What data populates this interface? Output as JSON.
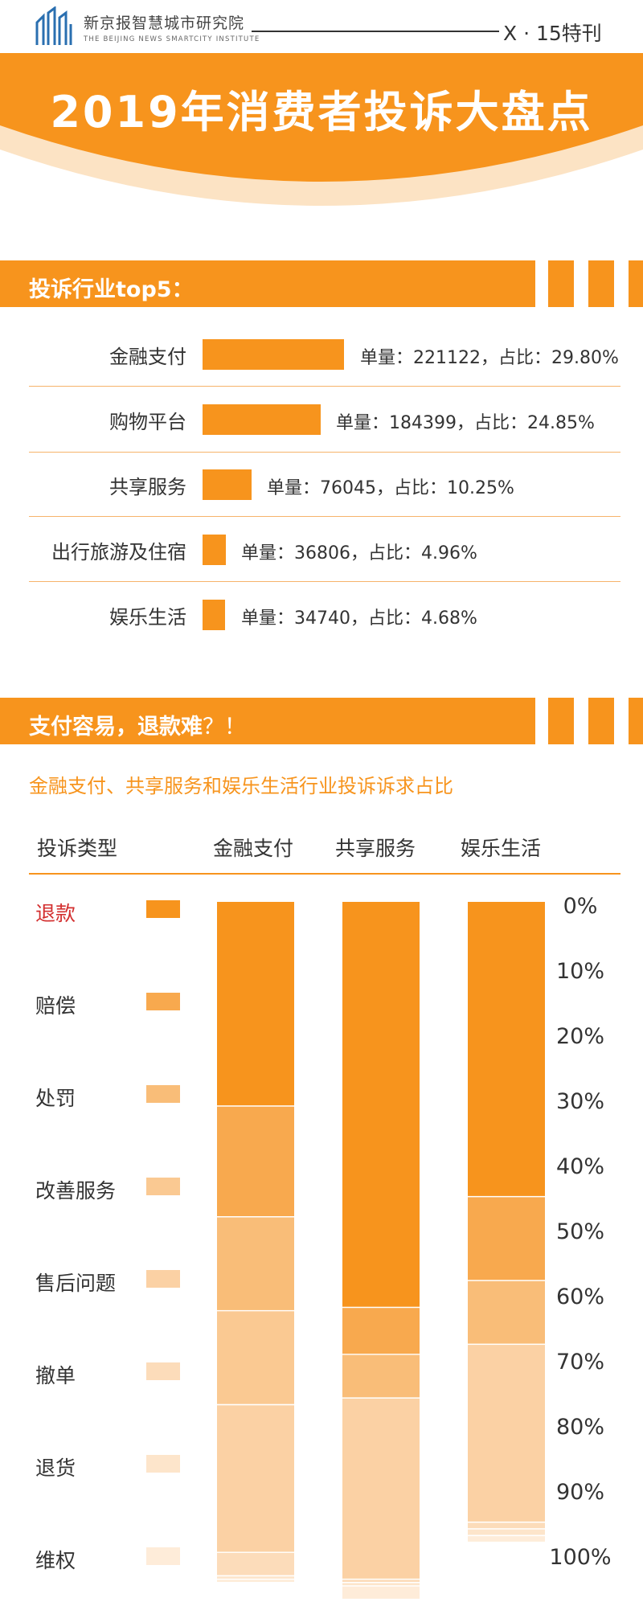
{
  "header": {
    "org_cn": "新京报智慧城市研究院",
    "org_en": "THE BEIJING NEWS SMARTCITY INSTITUTE",
    "issue": "X · 15特刊",
    "logo": "building-logo-icon"
  },
  "banner": {
    "title": "2019年消费者投诉大盘点"
  },
  "section1": {
    "title": "投诉行业top5："
  },
  "section2": {
    "title_bold": "支付容易，退款难",
    "title_tail": "？！",
    "subtitle": "金融支付、共享服务和娱乐生活行业投诉诉求占比"
  },
  "colors": {
    "accent": "#f7941d",
    "text": "#333333",
    "red": "#d32f2f"
  },
  "chart_data": [
    {
      "type": "bar",
      "orientation": "horizontal",
      "title": "投诉行业top5：",
      "categories": [
        "金融支付",
        "购物平台",
        "共享服务",
        "出行旅游及住宿",
        "娱乐生活"
      ],
      "series": [
        {
          "name": "单量",
          "values": [
            221122,
            184399,
            76045,
            36806,
            34740
          ]
        },
        {
          "name": "占比",
          "values": [
            29.8,
            24.85,
            10.25,
            4.96,
            4.68
          ]
        }
      ],
      "labels": [
        "单量：221122，占比：29.80%",
        "单量：184399，占比：24.85%",
        "单量：76045，占比：10.25%",
        "单量：36806，占比：4.96%",
        "单量：34740，占比：4.68%"
      ]
    },
    {
      "type": "bar",
      "stacked": true,
      "title": "金融支付、共享服务和娱乐生活行业投诉诉求占比",
      "legend_header": "投诉类型",
      "categories": [
        "金融支付",
        "共享服务",
        "娱乐生活"
      ],
      "series": [
        {
          "name": "退款",
          "values": [
            30.5,
            60.5,
            44.0
          ]
        },
        {
          "name": "赔偿",
          "values": [
            16.5,
            7.0,
            12.5
          ]
        },
        {
          "name": "处罚",
          "values": [
            14.0,
            6.5,
            9.5
          ]
        },
        {
          "name": "改善服务",
          "values": [
            14.0,
            0.0,
            0.0
          ]
        },
        {
          "name": "售后问题",
          "values": [
            22.0,
            27.0,
            26.5
          ]
        },
        {
          "name": "撤单",
          "values": [
            3.5,
            0.5,
            1.0
          ]
        },
        {
          "name": "退货",
          "values": [
            0.5,
            0.5,
            1.0
          ]
        },
        {
          "name": "维权",
          "values": [
            0.5,
            2.0,
            1.0
          ]
        }
      ],
      "series_colors": [
        "#f7941d",
        "#f8a94e",
        "#f9bd78",
        "#fac992",
        "#fbd1a4",
        "#fcdcba",
        "#fde5cb",
        "#feecd9"
      ],
      "y_ticks": [
        "0%",
        "10%",
        "20%",
        "30%",
        "40%",
        "50%",
        "60%",
        "70%",
        "80%",
        "90%",
        "100%"
      ],
      "ylim": [
        0,
        100
      ],
      "y_direction": "top-to-bottom",
      "grid": false,
      "legend_placement": "left"
    }
  ]
}
